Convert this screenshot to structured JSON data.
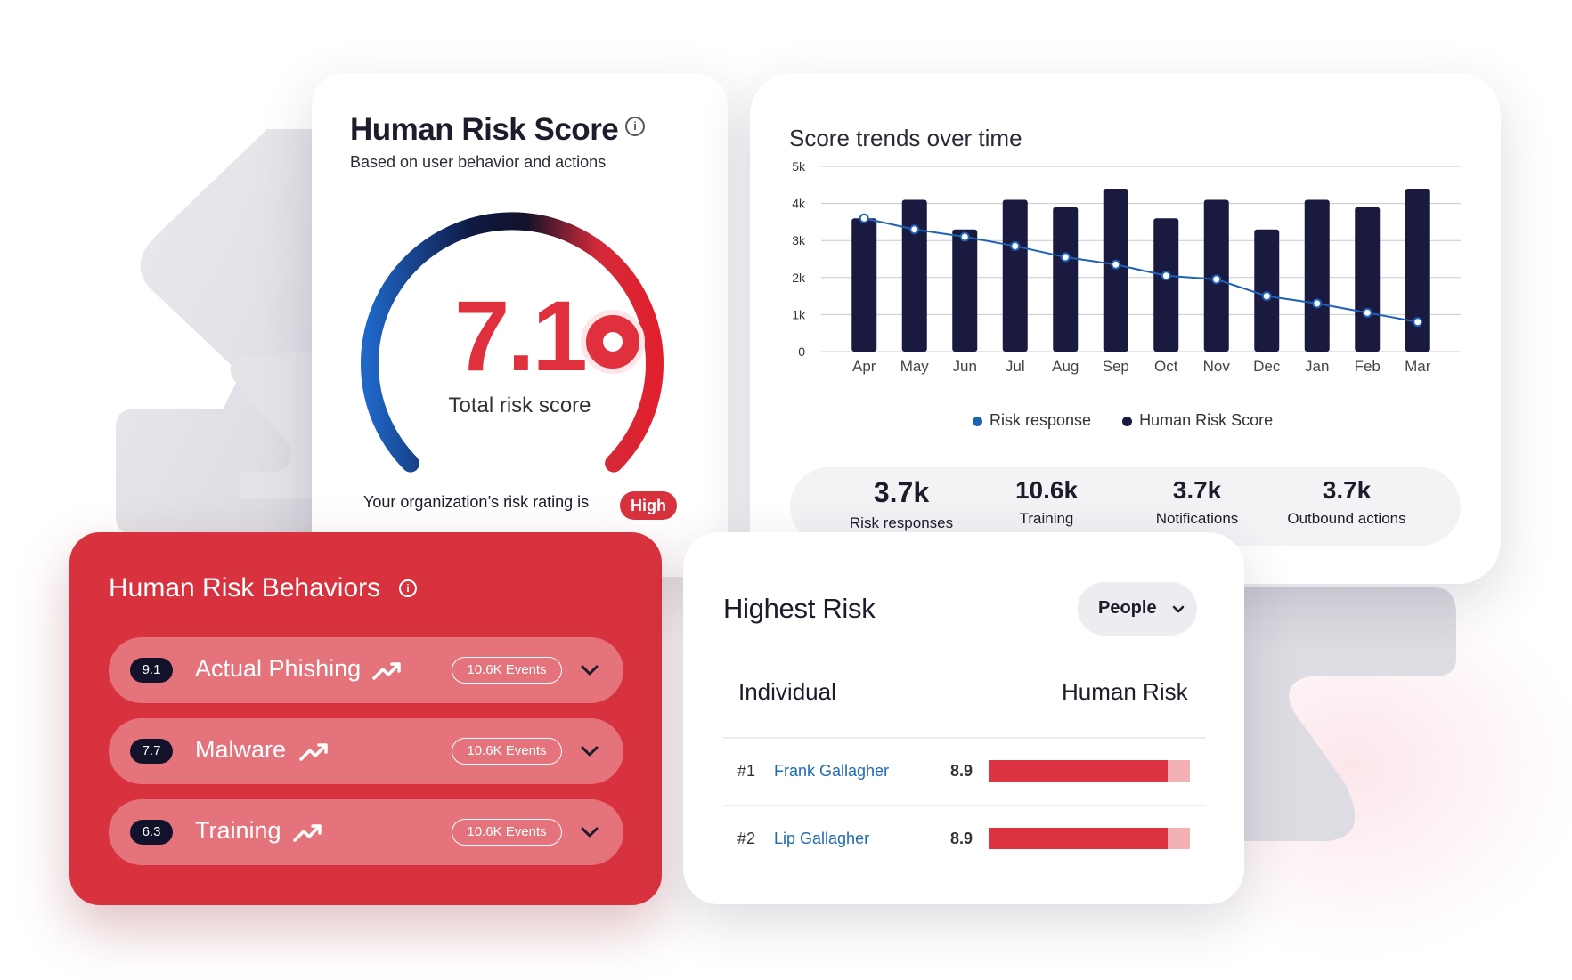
{
  "risk_score": {
    "title": "Human Risk Score",
    "subtitle": "Based on user behavior and actions",
    "score": "7.1",
    "score_label": "Total risk score",
    "rating_text": "Your organization’s risk rating is",
    "rating": "High",
    "gauge_fraction": 0.71,
    "info_icon": "info-icon"
  },
  "trends": {
    "title": "Score trends over time",
    "legend": [
      "Risk response",
      "Human Risk Score"
    ],
    "stats": [
      {
        "value": "3.7k",
        "label": "Risk responses"
      },
      {
        "value": "10.6k",
        "label": "Training"
      },
      {
        "value": "3.7k",
        "label": "Notifications"
      },
      {
        "value": "3.7k",
        "label": "Outbound actions"
      }
    ]
  },
  "chart_data": {
    "type": "bar",
    "categories": [
      "Apr",
      "May",
      "Jun",
      "Jul",
      "Aug",
      "Sep",
      "Oct",
      "Nov",
      "Dec",
      "Jan",
      "Feb",
      "Mar"
    ],
    "series": [
      {
        "name": "Human Risk Score",
        "type": "bar",
        "axis": "left",
        "color": "#1a1a40",
        "values": [
          3.6,
          4.1,
          3.3,
          4.1,
          3.9,
          4.4,
          3.6,
          4.1,
          3.3,
          4.1,
          3.9,
          4.4
        ]
      },
      {
        "name": "Risk response",
        "type": "line",
        "axis": "right",
        "color": "#1f62b5",
        "values": [
          7.2,
          6.6,
          6.2,
          5.7,
          5.1,
          4.7,
          4.1,
          3.9,
          3.0,
          2.6,
          2.1,
          1.6
        ]
      }
    ],
    "y_left_ticks": [
      "0",
      "1k",
      "2k",
      "3k",
      "4k",
      "5k"
    ],
    "y_left_max": 5,
    "y_right_ticks": [
      "0",
      "2",
      "4",
      "6",
      "8",
      "10"
    ],
    "y_right_max": 10,
    "grid": true
  },
  "behaviors": {
    "title": "Human Risk Behaviors",
    "items": [
      {
        "score": "9.1",
        "name": "Actual Phishing",
        "events": "10.6K Events"
      },
      {
        "score": "7.7",
        "name": "Malware",
        "events": "10.6K Events"
      },
      {
        "score": "6.3",
        "name": "Training",
        "events": "10.6K Events"
      }
    ]
  },
  "highest_risk": {
    "title": "Highest Risk",
    "filter": "People",
    "col_individual": "Individual",
    "col_risk": "Human Risk",
    "rows": [
      {
        "rank": "#1",
        "name": "Frank Gallagher",
        "score": "8.9",
        "fraction": 0.89
      },
      {
        "rank": "#2",
        "name": "Lip Gallagher",
        "score": "8.9",
        "fraction": 0.89
      }
    ]
  },
  "colors": {
    "accent": "#d9323f",
    "navy": "#1a1a40",
    "blue": "#1f62b5"
  }
}
